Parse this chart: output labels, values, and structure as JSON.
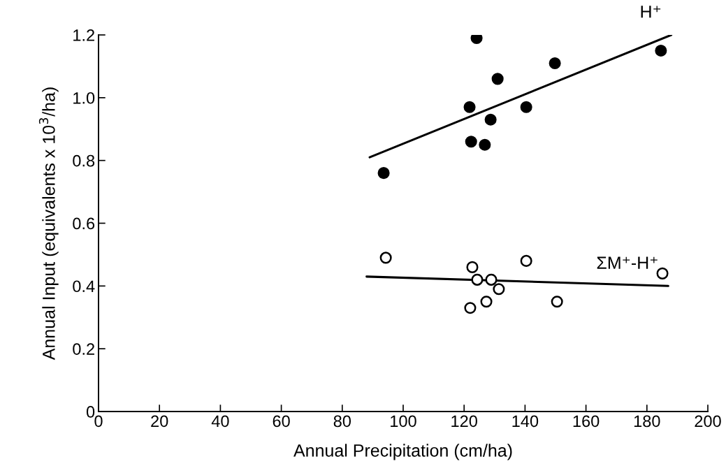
{
  "chart_data": {
    "type": "scatter",
    "xlabel": "Annual Precipitation (cm/ha)",
    "ylabel": "Annual Input (equivalents x 10$^{3}$/ha)",
    "xlim": [
      0,
      200
    ],
    "ylim": [
      0,
      1.2
    ],
    "xticks": [
      0,
      20,
      40,
      60,
      80,
      100,
      120,
      140,
      160,
      180,
      200
    ],
    "yticks": [
      0,
      0.2,
      0.4,
      0.6,
      0.8,
      {
        "value": 1.0,
        "label": "1.0"
      },
      1.2
    ],
    "grid": false,
    "series": [
      {
        "color": "#000000",
        "marker": "circle",
        "x": [
          93.6,
          124.1,
          149.8,
          131.0,
          121.8,
          140.4,
          128.7,
          122.3,
          126.8,
          184.6
        ],
        "values": [
          0.76,
          1.19,
          1.11,
          1.06,
          0.97,
          0.97,
          0.93,
          0.86,
          0.85,
          1.15
        ]
      },
      {
        "type": "line",
        "name": "H⁺",
        "color": "#000000",
        "marker": "none",
        "x": [
          89,
          188
        ],
        "values": [
          0.81,
          1.2
        ]
      },
      {
        "color": "#ffffff",
        "marker": "circle",
        "x": [
          94.3,
          122.7,
          140.4,
          185.1,
          124.3,
          128.9,
          131.4,
          127.3,
          122.0,
          150.5
        ],
        "values": [
          0.49,
          0.46,
          0.48,
          0.44,
          0.42,
          0.42,
          0.39,
          0.35,
          0.33,
          0.35
        ]
      },
      {
        "type": "line",
        "name": "ΣM⁺-H⁺",
        "color": "#000000",
        "marker": "none",
        "x": [
          88,
          187
        ],
        "values": [
          0.43,
          0.4
        ]
      }
    ]
  }
}
